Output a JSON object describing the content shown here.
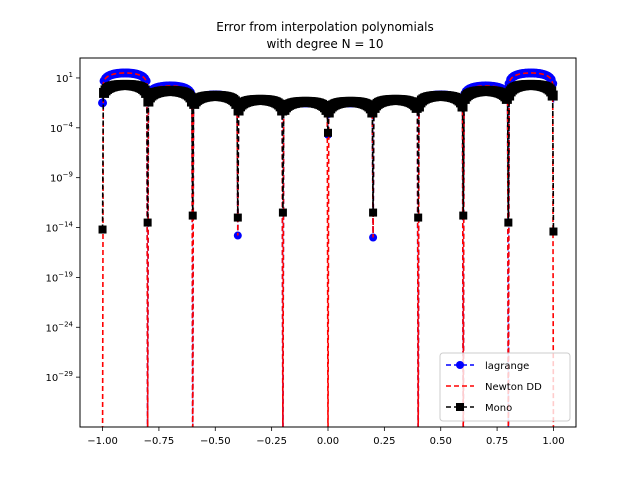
{
  "chart_data": {
    "type": "line",
    "title": "Error from interpolation polynomials",
    "subtitle": "with degree N = 10",
    "xlabel": "",
    "ylabel": "",
    "yscale": "log",
    "xlim": [
      -1.1,
      1.1
    ],
    "ylim_exponent": [
      -34,
      3
    ],
    "x_ticks": [
      -1.0,
      -0.75,
      -0.5,
      -0.25,
      0.0,
      0.25,
      0.5,
      0.75,
      1.0
    ],
    "x_tick_labels": [
      "−1.00",
      "−0.75",
      "−0.50",
      "−0.25",
      "0.00",
      "0.25",
      "0.50",
      "0.75",
      "1.00"
    ],
    "y_tick_exponents": [
      1,
      -4,
      -9,
      -14,
      -19,
      -24,
      -29
    ],
    "y_tick_labels": [
      "10",
      "10",
      "10",
      "10",
      "10",
      "10",
      "10"
    ],
    "y_tick_superscripts": [
      "1",
      "−4",
      "−9",
      "−14",
      "−19",
      "−24",
      "−29"
    ],
    "grid": false,
    "legend_position": "lower-right",
    "nodes": [
      -1.0,
      -0.8,
      -0.6,
      -0.4,
      -0.2,
      0.0,
      0.2,
      0.4,
      0.6,
      0.8,
      1.0
    ],
    "series": [
      {
        "name": "lagrange",
        "color": "#0000ff",
        "linestyle": "dashed",
        "marker": "circle",
        "arch_peak_log10": [
          1.5,
          0.2,
          -0.7,
          -1.2,
          -1.5,
          -1.5,
          -1.2,
          -0.7,
          0.2,
          1.5
        ],
        "node_log10": [
          -1.5,
          -36,
          -36,
          -14.8,
          -36,
          -4.7,
          -15.0,
          -36,
          -36,
          -36,
          -1.5
        ]
      },
      {
        "name": "Newton DD",
        "color": "#ff0000",
        "linestyle": "dashed",
        "marker": "none",
        "arch_peak_log10": [
          1.5,
          0.2,
          -0.7,
          -1.2,
          -1.5,
          -1.5,
          -1.2,
          -0.7,
          0.2,
          1.5
        ],
        "node_log10": [
          -36,
          -36,
          -36,
          -14.8,
          -36,
          -36,
          -15.0,
          -36,
          -36,
          -36,
          -36
        ]
      },
      {
        "name": "Mono",
        "color": "#000000",
        "linestyle": "dashed",
        "marker": "square",
        "arch_peak_log10": [
          0.3,
          -0.3,
          -0.8,
          -1.2,
          -1.4,
          -1.4,
          -1.2,
          -0.8,
          -0.3,
          0.3
        ],
        "node_log10": [
          -14.2,
          -13.5,
          -12.8,
          -13.0,
          -12.5,
          -4.5,
          -12.5,
          -13.0,
          -12.8,
          -13.5,
          -14.4
        ]
      }
    ]
  }
}
